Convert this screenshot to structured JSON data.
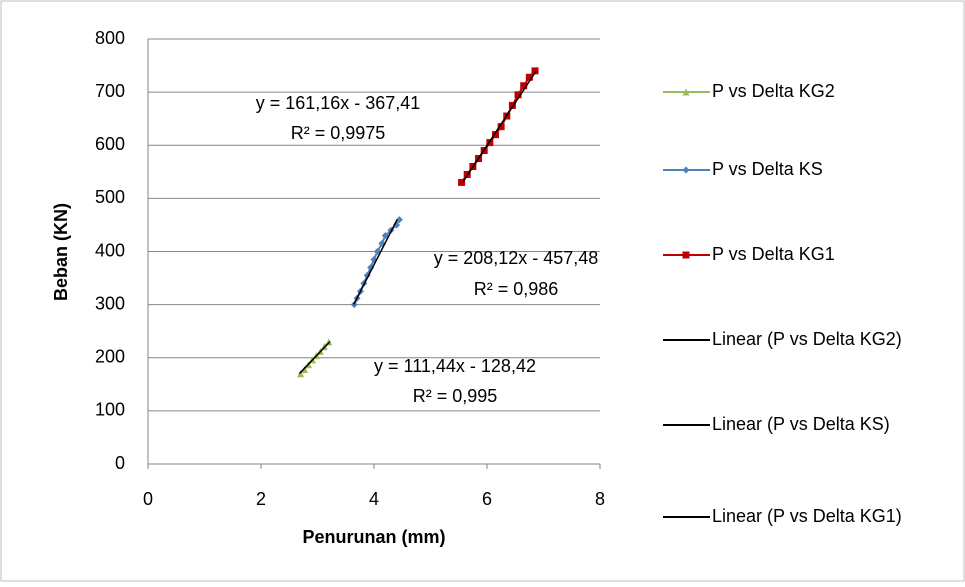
{
  "chart_data": {
    "type": "scatter",
    "xlabel": "Penurunan (mm)",
    "ylabel": "Beban (KN)",
    "xlim": [
      0,
      8
    ],
    "xticks": [
      0,
      2,
      4,
      6,
      8
    ],
    "ylim": [
      0,
      800
    ],
    "yticks": [
      0,
      100,
      200,
      300,
      400,
      500,
      600,
      700,
      800
    ],
    "grid": true,
    "legend": "right",
    "series": [
      {
        "name": "P vs Delta KG2",
        "color": "#9bbb59",
        "marker": "triangle",
        "x": [
          2.7,
          2.77,
          2.84,
          2.91,
          2.98,
          3.05,
          3.12,
          3.2
        ],
        "values": [
          170,
          178,
          187,
          196,
          204,
          212,
          221,
          230
        ]
      },
      {
        "name": "P vs Delta KS",
        "color": "#4f81bd",
        "marker": "diamond",
        "x": [
          3.65,
          3.7,
          3.76,
          3.82,
          3.88,
          3.94,
          4.0,
          4.06,
          4.14,
          4.2,
          4.3,
          4.4,
          4.45
        ],
        "values": [
          300,
          312,
          325,
          340,
          355,
          370,
          385,
          400,
          415,
          430,
          440,
          450,
          460
        ]
      },
      {
        "name": "P vs Delta KG1",
        "color": "#c00000",
        "marker": "square",
        "x": [
          5.55,
          5.65,
          5.75,
          5.85,
          5.95,
          6.05,
          6.15,
          6.25,
          6.35,
          6.45,
          6.55,
          6.65,
          6.75,
          6.85
        ],
        "values": [
          530,
          545,
          560,
          575,
          590,
          605,
          620,
          635,
          655,
          675,
          695,
          712,
          728,
          740
        ]
      },
      {
        "name": "Linear (P vs Delta KG2)",
        "color": "#000000",
        "marker": "none",
        "x": [
          2.68,
          3.22
        ],
        "values": [
          170.2,
          230.4
        ]
      },
      {
        "name": "Linear (P vs Delta KS)",
        "color": "#000000",
        "marker": "none",
        "x": [
          3.64,
          4.41
        ],
        "values": [
          300.1,
          460.3
        ]
      },
      {
        "name": "Linear (P vs Delta KG1)",
        "color": "#000000",
        "marker": "none",
        "x": [
          5.57,
          6.87
        ],
        "values": [
          530.3,
          739.8
        ]
      }
    ],
    "annotations": [
      "y = 161,16x - 367,41",
      "R² = 0,9975",
      "y = 208,12x - 457,48",
      "R² = 0,986",
      "y = 111,44x - 128,42",
      "R² = 0,995"
    ]
  }
}
